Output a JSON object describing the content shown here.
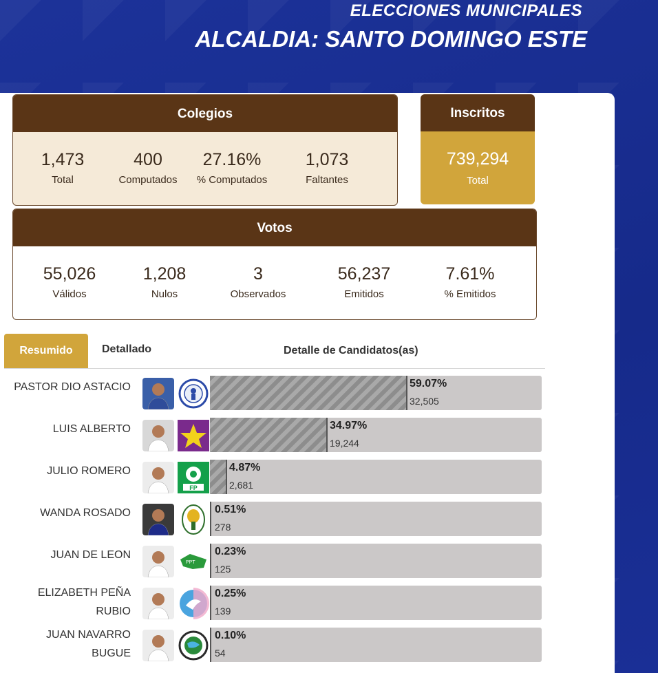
{
  "header": {
    "line1": "ELECCIONES MUNICIPALES",
    "line2": "ALCALDIA: SANTO DOMINGO ESTE"
  },
  "colegios": {
    "title": "Colegios",
    "stats": [
      {
        "value": "1,473",
        "label": "Total"
      },
      {
        "value": "400",
        "label": "Computados"
      },
      {
        "value": "27.16%",
        "label": "% Computados"
      },
      {
        "value": "1,073",
        "label": "Faltantes"
      }
    ]
  },
  "inscritos": {
    "title": "Inscritos",
    "value": "739,294",
    "label": "Total"
  },
  "votos": {
    "title": "Votos",
    "stats": [
      {
        "value": "55,026",
        "label": "Válidos"
      },
      {
        "value": "1,208",
        "label": "Nulos"
      },
      {
        "value": "3",
        "label": "Observados"
      },
      {
        "value": "56,237",
        "label": "Emitidos"
      },
      {
        "value": "7.61%",
        "label": "% Emitidos"
      }
    ]
  },
  "tabs": {
    "resumido": "Resumido",
    "detallado": "Detallado",
    "title": "Detalle de Candidatos(as)"
  },
  "candidates": [
    {
      "name": "PASTOR DIO ASTACIO",
      "pct": "59.07%",
      "share": 0.5907,
      "votes": "32,505",
      "logo": "pld-logo-icon"
    },
    {
      "name": "LUIS ALBERTO",
      "pct": "34.97%",
      "share": 0.3497,
      "votes": "19,244",
      "logo": "prd-star-logo-icon"
    },
    {
      "name": "JULIO ROMERO",
      "pct": "4.87%",
      "share": 0.0487,
      "votes": "2,681",
      "logo": "fp-logo-icon"
    },
    {
      "name": "WANDA ROSADO",
      "pct": "0.51%",
      "share": 0.0051,
      "votes": "278",
      "logo": "prsc-logo-icon"
    },
    {
      "name": "JUAN DE LEON",
      "pct": "0.23%",
      "share": 0.0023,
      "votes": "125",
      "logo": "map-logo-icon"
    },
    {
      "name": "ELIZABETH PEÑA RUBIO",
      "line1": "ELIZABETH PEÑA",
      "line2": "RUBIO",
      "pct": "0.25%",
      "share": 0.0025,
      "votes": "139",
      "logo": "dove-logo-icon"
    },
    {
      "name": "JUAN NAVARRO BUGUE",
      "line1": "JUAN NAVARRO",
      "line2": "BUGUE",
      "pct": "0.10%",
      "share": 0.001,
      "votes": "54",
      "logo": "globe-logo-icon"
    }
  ]
}
